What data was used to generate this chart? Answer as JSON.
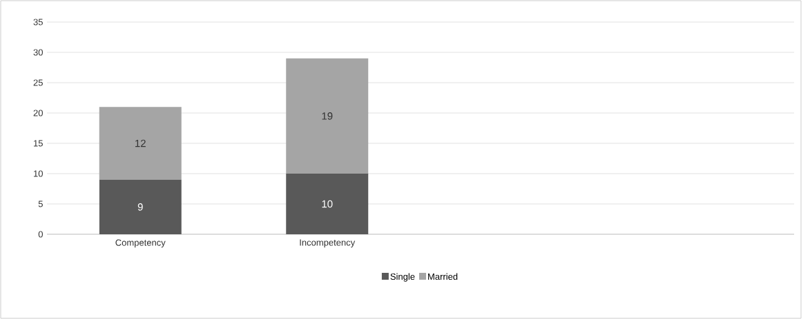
{
  "chart_data": {
    "type": "bar",
    "stacked": true,
    "categories": [
      "Competency",
      "Incompetency",
      null,
      null
    ],
    "series": [
      {
        "name": "Single",
        "color": "#595959",
        "values": [
          9,
          10,
          null,
          null
        ]
      },
      {
        "name": "Married",
        "color": "#a5a5a5",
        "values": [
          12,
          19,
          null,
          null
        ]
      }
    ],
    "ylim": [
      0,
      35
    ],
    "yticks": [
      0,
      5,
      10,
      15,
      20,
      25,
      30,
      35
    ],
    "grid": "y",
    "legend": "bottom",
    "data_labels": true
  }
}
